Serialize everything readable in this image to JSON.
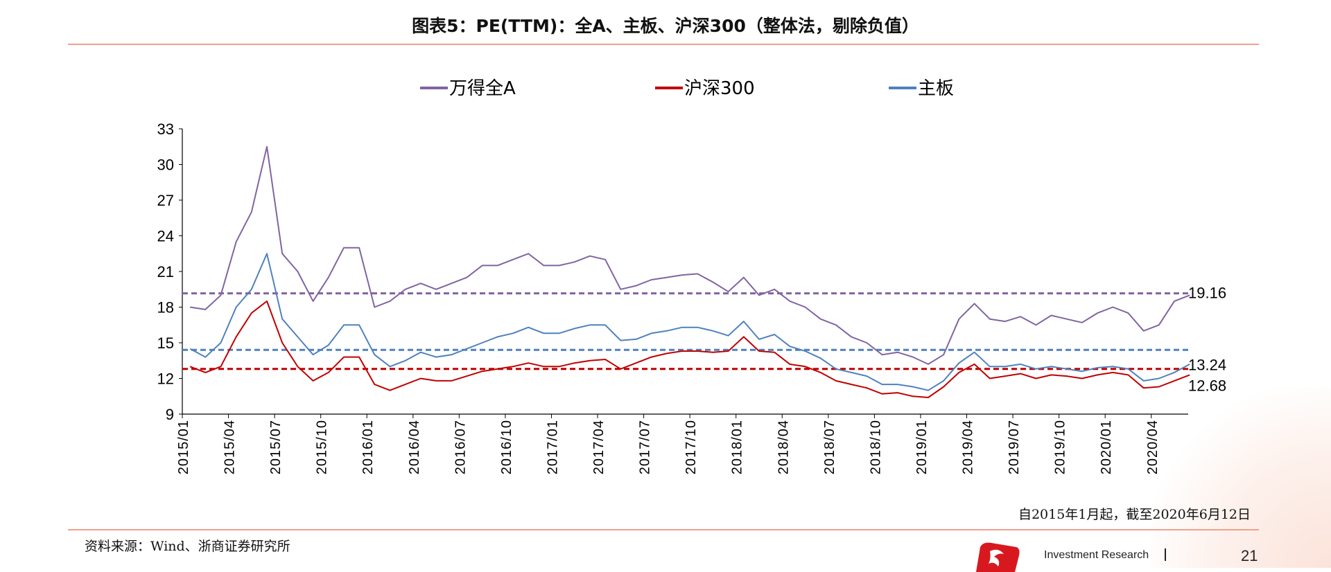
{
  "title": "图表5：PE(TTM)：全A、主板、沪深300（整体法，剔除负值）",
  "note": "自2015年1月起，截至2020年6月12日",
  "source": "资料来源：Wind、浙商证券研究所",
  "footer": {
    "brand": "Investment Research",
    "page": "21"
  },
  "chart_data": {
    "type": "line",
    "title": "",
    "xlabel": "",
    "ylabel": "",
    "ylim": [
      9,
      33
    ],
    "yticks": [
      9,
      12,
      15,
      18,
      21,
      24,
      27,
      30,
      33
    ],
    "xticks": [
      "2015/01",
      "2015/04",
      "2015/07",
      "2015/10",
      "2016/01",
      "2016/04",
      "2016/07",
      "2016/10",
      "2017/01",
      "2017/04",
      "2017/07",
      "2017/10",
      "2018/01",
      "2018/04",
      "2018/07",
      "2018/10",
      "2019/01",
      "2019/04",
      "2019/07",
      "2019/10",
      "2020/01",
      "2020/04"
    ],
    "xlim": [
      "2015/01",
      "2020/06"
    ],
    "grid": false,
    "legend_position": "top",
    "dates": [
      "2015/01",
      "2015/02",
      "2015/03",
      "2015/04",
      "2015/05",
      "2015/06",
      "2015/07",
      "2015/08",
      "2015/09",
      "2015/10",
      "2015/11",
      "2015/12",
      "2016/01",
      "2016/02",
      "2016/03",
      "2016/04",
      "2016/05",
      "2016/06",
      "2016/07",
      "2016/08",
      "2016/09",
      "2016/10",
      "2016/11",
      "2016/12",
      "2017/01",
      "2017/02",
      "2017/03",
      "2017/04",
      "2017/05",
      "2017/06",
      "2017/07",
      "2017/08",
      "2017/09",
      "2017/10",
      "2017/11",
      "2017/12",
      "2018/01",
      "2018/02",
      "2018/03",
      "2018/04",
      "2018/05",
      "2018/06",
      "2018/07",
      "2018/08",
      "2018/09",
      "2018/10",
      "2018/11",
      "2018/12",
      "2019/01",
      "2019/02",
      "2019/03",
      "2019/04",
      "2019/05",
      "2019/06",
      "2019/07",
      "2019/08",
      "2019/09",
      "2019/10",
      "2019/11",
      "2019/12",
      "2020/01",
      "2020/02",
      "2020/03",
      "2020/04",
      "2020/05",
      "2020/06"
    ],
    "series": [
      {
        "name": "万得全A",
        "color": "#8064a2",
        "values": [
          18,
          17.8,
          19,
          23.5,
          26,
          31.5,
          22.5,
          21,
          18.5,
          20.5,
          23,
          23,
          18,
          18.5,
          19.5,
          20,
          19.5,
          20,
          20.5,
          21.5,
          21.5,
          22,
          22.5,
          21.5,
          21.5,
          21.8,
          22.3,
          22,
          19.5,
          19.8,
          20.3,
          20.5,
          20.7,
          20.8,
          20.1,
          19.3,
          20.5,
          19,
          19.5,
          18.5,
          18,
          17,
          16.5,
          15.5,
          15,
          14,
          14.2,
          13.8,
          13.2,
          14,
          17,
          18.3,
          17,
          16.8,
          17.2,
          16.5,
          17.3,
          17,
          16.7,
          17.5,
          18,
          17.5,
          16,
          16.5,
          18.5,
          19
        ]
      },
      {
        "name": "沪深300",
        "color": "#c00000",
        "values": [
          13,
          12.5,
          13,
          15.5,
          17.5,
          18.5,
          15,
          13,
          11.8,
          12.5,
          13.8,
          13.8,
          11.5,
          11,
          11.5,
          12,
          11.8,
          11.8,
          12.2,
          12.6,
          12.8,
          13,
          13.3,
          13,
          13,
          13.3,
          13.5,
          13.6,
          12.8,
          13.3,
          13.8,
          14.1,
          14.3,
          14.3,
          14.2,
          14.3,
          15.5,
          14.3,
          14.2,
          13.2,
          13,
          12.5,
          11.8,
          11.5,
          11.2,
          10.7,
          10.8,
          10.5,
          10.4,
          11.3,
          12.5,
          13.2,
          12,
          12.2,
          12.4,
          12,
          12.3,
          12.2,
          12,
          12.3,
          12.5,
          12.3,
          11.2,
          11.3,
          11.8,
          12.3
        ]
      },
      {
        "name": "主板",
        "color": "#4f81bd",
        "values": [
          14.5,
          13.8,
          15,
          18,
          19.5,
          22.5,
          17,
          15.5,
          14,
          14.8,
          16.5,
          16.5,
          14,
          13,
          13.5,
          14.2,
          13.8,
          14,
          14.5,
          15,
          15.5,
          15.8,
          16.3,
          15.8,
          15.8,
          16.2,
          16.5,
          16.5,
          15.2,
          15.3,
          15.8,
          16,
          16.3,
          16.3,
          16,
          15.6,
          16.8,
          15.3,
          15.7,
          14.7,
          14.3,
          13.7,
          12.8,
          12.5,
          12.2,
          11.5,
          11.5,
          11.3,
          11,
          11.8,
          13.3,
          14.2,
          13,
          13,
          13.2,
          12.8,
          13,
          12.8,
          12.6,
          12.9,
          13,
          12.8,
          11.8,
          12,
          12.5,
          13.2
        ]
      }
    ],
    "reference_lines": [
      {
        "color": "#8064a2",
        "value": 19.16,
        "style": "dashed"
      },
      {
        "color": "#4f81bd",
        "value": 14.4,
        "style": "dashed"
      },
      {
        "color": "#c00000",
        "value": 12.8,
        "style": "dashed"
      }
    ],
    "annotations": [
      "19.16",
      "13.24",
      "12.68"
    ]
  }
}
